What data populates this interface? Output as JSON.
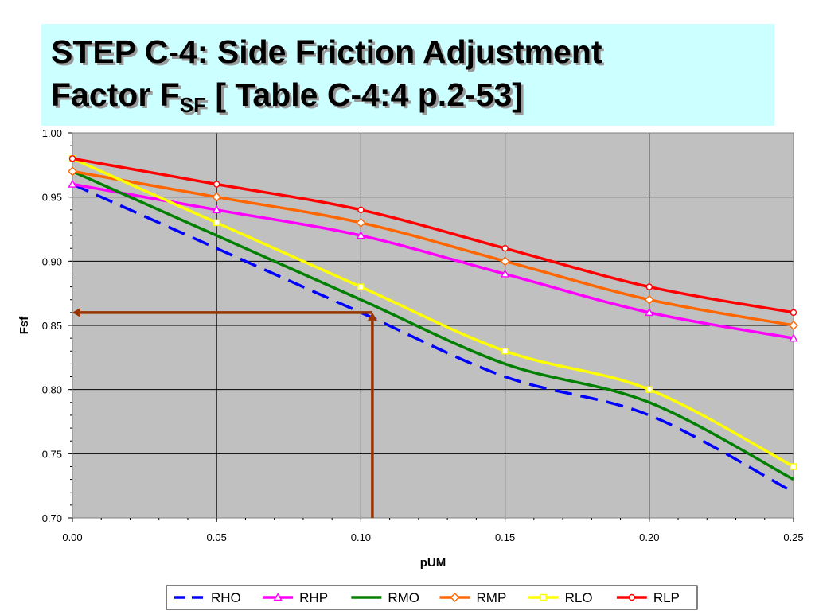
{
  "title": {
    "line1": "STEP C-4: Side Friction Adjustment",
    "line2_prefix": "Factor F",
    "line2_sub": "SF",
    "line2_suffix": " [ Table C-4:4 p.2-53]"
  },
  "chart_data": {
    "type": "line",
    "xlabel": "pUM",
    "ylabel": "Fsf",
    "xlim": [
      0.0,
      0.25
    ],
    "ylim": [
      0.7,
      1.0
    ],
    "x": [
      0.0,
      0.05,
      0.1,
      0.15,
      0.2,
      0.25
    ],
    "x_tick_labels": [
      "0.00",
      "0.05",
      "0.10",
      "0.15",
      "0.20",
      "0.25"
    ],
    "y_ticks": [
      0.7,
      0.75,
      0.8,
      0.85,
      0.9,
      0.95,
      1.0
    ],
    "y_tick_labels": [
      "0.70",
      "0.75",
      "0.80",
      "0.85",
      "0.90",
      "0.95",
      "1.00"
    ],
    "grid": true,
    "plot_background": "#c0c0c0",
    "legend_position": "bottom",
    "series": [
      {
        "name": "RHO",
        "values": [
          0.96,
          0.91,
          0.86,
          0.81,
          0.78,
          0.72
        ],
        "color": "#0000ff",
        "dash": true,
        "marker": "none"
      },
      {
        "name": "RHP",
        "values": [
          0.96,
          0.94,
          0.92,
          0.89,
          0.86,
          0.84
        ],
        "color": "#ff00ff",
        "dash": false,
        "marker": "triangle"
      },
      {
        "name": "RMO",
        "values": [
          0.97,
          0.92,
          0.87,
          0.82,
          0.79,
          0.73
        ],
        "color": "#008000",
        "dash": false,
        "marker": "none"
      },
      {
        "name": "RMP",
        "values": [
          0.97,
          0.95,
          0.93,
          0.9,
          0.87,
          0.85
        ],
        "color": "#ff6600",
        "dash": false,
        "marker": "diamond"
      },
      {
        "name": "RLO",
        "values": [
          0.98,
          0.93,
          0.88,
          0.83,
          0.8,
          0.74
        ],
        "color": "#ffff00",
        "dash": false,
        "marker": "square"
      },
      {
        "name": "RLP",
        "values": [
          0.98,
          0.96,
          0.94,
          0.91,
          0.88,
          0.86
        ],
        "color": "#ff0000",
        "dash": false,
        "marker": "circle"
      }
    ],
    "annotations": [
      {
        "type": "vertical-arrow",
        "from": [
          0.104,
          0.7
        ],
        "to": [
          0.104,
          0.86
        ],
        "color": "#993300"
      },
      {
        "type": "horizontal-arrow",
        "from": [
          0.104,
          0.86
        ],
        "to": [
          0.0,
          0.86
        ],
        "color": "#993300"
      }
    ]
  }
}
